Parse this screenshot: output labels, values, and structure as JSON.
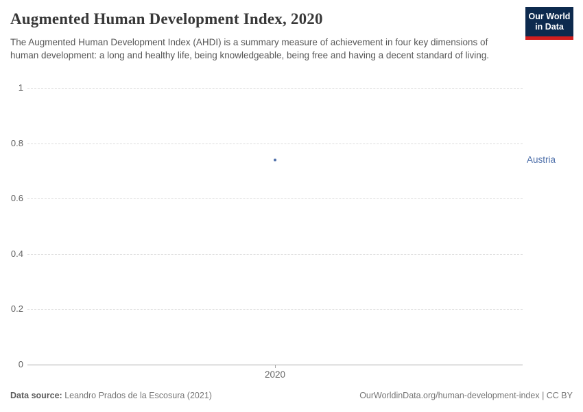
{
  "header": {
    "title": "Augmented Human Development Index, 2020",
    "subtitle": "The Augmented Human Development Index (AHDI) is a summary measure of achievement in four key dimensions of human development: a long and healthy life, being knowledgeable, being free and having a decent standard of living.",
    "logo": {
      "line1": "Our World",
      "line2": "in Data",
      "bg_color": "#0d2a4e",
      "stripe_color": "#d21e1e"
    }
  },
  "chart_data": {
    "type": "scatter",
    "title": "Augmented Human Development Index, 2020",
    "x": [
      2020
    ],
    "series": [
      {
        "name": "Austria",
        "values": [
          0.74
        ],
        "color": "#4c6ea9"
      }
    ],
    "xlabel": "",
    "ylabel": "",
    "ylim": [
      0,
      1
    ],
    "yticks": [
      0,
      0.2,
      0.4,
      0.6,
      0.8,
      1
    ],
    "xticks": [
      2020
    ],
    "grid": "horizontal dashed",
    "legend_position": "right entity label",
    "colors": {
      "gridline": "#dcdcdc",
      "axis": "#a8a8a8",
      "tick_text": "#606060"
    }
  },
  "footer": {
    "source_label": "Data source:",
    "source_text": "Leandro Prados de la Escosura (2021)",
    "citation": "OurWorldinData.org/human-development-index | CC BY"
  }
}
